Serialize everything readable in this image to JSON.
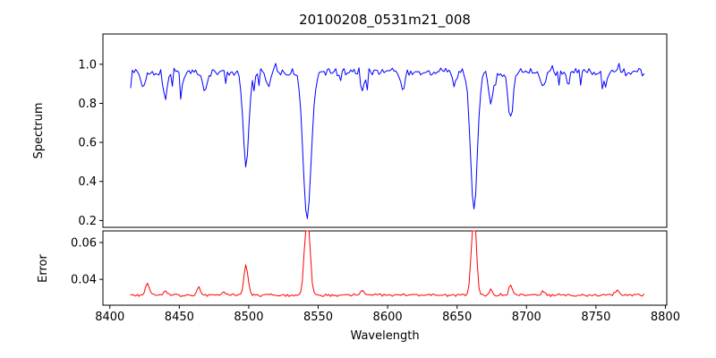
{
  "chart_data": {
    "type": "line",
    "title": "20100208_0531m21_008",
    "xlabel": "Wavelength",
    "xlim": [
      8395,
      8801
    ],
    "x_range": [
      8415,
      8785
    ],
    "xticks": [
      8400,
      8450,
      8500,
      8550,
      8600,
      8650,
      8700,
      8750,
      8800
    ],
    "sample_step": 1.2,
    "legend": "none",
    "grid": false,
    "panels": [
      {
        "ylabel": "Spectrum",
        "color": "#0000ff",
        "ylim": [
          0.165,
          1.155
        ],
        "yticks": [
          0.2,
          0.4,
          0.6,
          0.8,
          1.0
        ],
        "continuum": 0.96,
        "noise": {
          "seed": 20100208,
          "amplitude": 0.024,
          "dip_prob": 0.06,
          "dip_depth": 0.09,
          "spike_prob": 0.04,
          "spike_height": 0.05
        },
        "absorption_lines": [
          {
            "center": 8424.0,
            "depth": 0.08,
            "width": 1.4
          },
          {
            "center": 8440.0,
            "depth": 0.13,
            "width": 1.5
          },
          {
            "center": 8452.0,
            "depth": 0.07,
            "width": 1.3
          },
          {
            "center": 8468.5,
            "depth": 0.1,
            "width": 1.4
          },
          {
            "center": 8498.0,
            "depth": 0.5,
            "width": 2.0
          },
          {
            "center": 8514.0,
            "depth": 0.08,
            "width": 1.4
          },
          {
            "center": 8542.1,
            "depth": 0.75,
            "width": 2.9
          },
          {
            "center": 8582.0,
            "depth": 0.1,
            "width": 1.4
          },
          {
            "center": 8611.0,
            "depth": 0.08,
            "width": 1.4
          },
          {
            "center": 8648.0,
            "depth": 0.07,
            "width": 1.3
          },
          {
            "center": 8662.1,
            "depth": 0.7,
            "width": 2.5
          },
          {
            "center": 8674.5,
            "depth": 0.17,
            "width": 1.5
          },
          {
            "center": 8688.5,
            "depth": 0.24,
            "width": 1.7
          },
          {
            "center": 8712.0,
            "depth": 0.08,
            "width": 1.4
          },
          {
            "center": 8730.0,
            "depth": 0.06,
            "width": 1.3
          },
          {
            "center": 8757.0,
            "depth": 0.07,
            "width": 1.3
          }
        ]
      },
      {
        "ylabel": "Error",
        "color": "#ff0000",
        "ylim": [
          0.026,
          0.0663
        ],
        "yticks": [
          0.04,
          0.06
        ],
        "baseline": 0.0315,
        "noise": {
          "seed": 531,
          "amplitude": 0.0009
        },
        "peaks": [
          {
            "center": 8427.0,
            "height": 0.0065,
            "width": 1.3
          },
          {
            "center": 8440.0,
            "height": 0.0025,
            "width": 1.3
          },
          {
            "center": 8464.0,
            "height": 0.004,
            "width": 1.3
          },
          {
            "center": 8482.0,
            "height": 0.002,
            "width": 1.2
          },
          {
            "center": 8498.0,
            "height": 0.016,
            "width": 1.5
          },
          {
            "center": 8542.1,
            "height": 0.052,
            "width": 1.8
          },
          {
            "center": 8582.0,
            "height": 0.0025,
            "width": 1.2
          },
          {
            "center": 8662.1,
            "height": 0.048,
            "width": 1.7
          },
          {
            "center": 8674.5,
            "height": 0.003,
            "width": 1.2
          },
          {
            "center": 8688.5,
            "height": 0.005,
            "width": 1.3
          },
          {
            "center": 8712.0,
            "height": 0.002,
            "width": 1.2
          },
          {
            "center": 8765.0,
            "height": 0.003,
            "width": 1.2
          }
        ]
      }
    ]
  }
}
